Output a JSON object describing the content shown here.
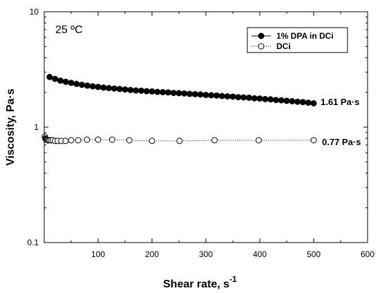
{
  "chart_data": {
    "type": "line",
    "title": "",
    "xlabel": "Shear rate, s",
    "xlabel_superscript": "-1",
    "ylabel": "Viscosity, Pa·s",
    "xlim": [
      0,
      600
    ],
    "ylim": [
      0.1,
      10
    ],
    "yscale": "log",
    "xticks": [
      100,
      200,
      300,
      400,
      500,
      600
    ],
    "yticks": [
      0.1,
      1,
      10
    ],
    "ytick_labels": [
      "0.1",
      "1",
      "10"
    ],
    "grid": false,
    "legend_position": "top-right",
    "series": [
      {
        "name": "1% DPA in DCi",
        "marker": "filled-circle",
        "line_style": "solid",
        "color": "#000000",
        "x": [
          10,
          20,
          30,
          40,
          50,
          60,
          70,
          80,
          90,
          100,
          110,
          120,
          130,
          140,
          150,
          160,
          170,
          180,
          190,
          200,
          210,
          220,
          230,
          240,
          250,
          260,
          270,
          280,
          290,
          300,
          310,
          320,
          330,
          340,
          350,
          360,
          370,
          380,
          390,
          400,
          410,
          420,
          430,
          440,
          450,
          460,
          470,
          480,
          490,
          500
        ],
        "y": [
          2.72,
          2.62,
          2.53,
          2.47,
          2.42,
          2.37,
          2.33,
          2.29,
          2.26,
          2.23,
          2.2,
          2.18,
          2.16,
          2.14,
          2.12,
          2.1,
          2.08,
          2.07,
          2.05,
          2.04,
          2.02,
          2.01,
          2.0,
          1.98,
          1.97,
          1.96,
          1.94,
          1.93,
          1.92,
          1.9,
          1.89,
          1.88,
          1.86,
          1.85,
          1.84,
          1.82,
          1.81,
          1.8,
          1.78,
          1.77,
          1.75,
          1.74,
          1.72,
          1.71,
          1.69,
          1.68,
          1.66,
          1.65,
          1.63,
          1.61
        ]
      },
      {
        "name": "DCi",
        "marker": "open-circle",
        "line_style": "dotted",
        "color": "#000000",
        "x": [
          1,
          2,
          3,
          4,
          5,
          6.3,
          8,
          10,
          12.6,
          15.8,
          20,
          25.1,
          31.6,
          39.8,
          50.1,
          63.1,
          79.4,
          100,
          126,
          158,
          200,
          251,
          316,
          398,
          500
        ],
        "y": [
          0.83,
          0.8,
          0.79,
          0.78,
          0.78,
          0.77,
          0.77,
          0.77,
          0.77,
          0.77,
          0.76,
          0.76,
          0.76,
          0.76,
          0.77,
          0.77,
          0.78,
          0.78,
          0.78,
          0.77,
          0.76,
          0.76,
          0.77,
          0.77,
          0.77
        ]
      }
    ],
    "annotations": {
      "temperature": "25 ºC",
      "series1_end": "1.61 Pa·s",
      "series2_end": "0.77 Pa·s"
    }
  }
}
